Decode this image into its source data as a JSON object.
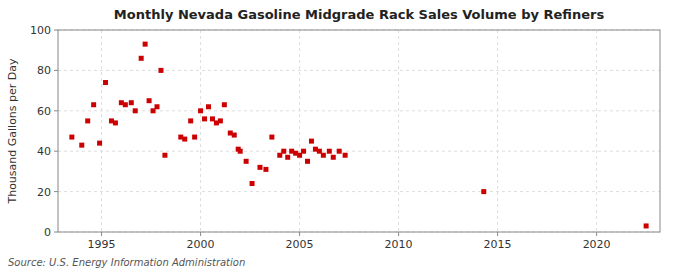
{
  "chart_data": {
    "type": "scatter",
    "title": "Monthly Nevada Gasoline Midgrade Rack Sales Volume by Refiners",
    "ylabel": "Thousand Gallons per Day",
    "annotations": [
      "Source: U.S. Energy Information Administration"
    ],
    "color": "#cc0000",
    "marker": "square",
    "grid": true,
    "xlim": [
      1992.8,
      2023.2
    ],
    "ylim": [
      0,
      100
    ],
    "xticks": [
      1995,
      2000,
      2005,
      2010,
      2015,
      2020
    ],
    "yticks": [
      0,
      20,
      40,
      60,
      80,
      100
    ],
    "x": [
      1993.5,
      1994.0,
      1994.3,
      1994.6,
      1994.9,
      1995.2,
      1995.5,
      1995.7,
      1996.0,
      1996.2,
      1996.5,
      1996.7,
      1997.0,
      1997.2,
      1997.4,
      1997.6,
      1997.8,
      1998.0,
      1998.2,
      1999.0,
      1999.2,
      1999.5,
      1999.7,
      2000.0,
      2000.2,
      2000.4,
      2000.6,
      2000.8,
      2001.0,
      2001.2,
      2001.5,
      2001.7,
      2001.9,
      2002.0,
      2002.3,
      2002.6,
      2003.0,
      2003.3,
      2003.6,
      2004.0,
      2004.2,
      2004.4,
      2004.6,
      2004.8,
      2005.0,
      2005.2,
      2005.4,
      2005.6,
      2005.8,
      2006.0,
      2006.2,
      2006.5,
      2006.7,
      2007.0,
      2007.3,
      2014.3,
      2022.5
    ],
    "values": [
      47,
      43,
      55,
      63,
      44,
      74,
      55,
      54,
      64,
      63,
      64,
      60,
      86,
      93,
      65,
      60,
      62,
      80,
      38,
      47,
      46,
      55,
      47,
      60,
      56,
      62,
      56,
      54,
      55,
      63,
      49,
      48,
      41,
      40,
      35,
      24,
      32,
      31,
      47,
      38,
      40,
      37,
      40,
      39,
      38,
      40,
      35,
      45,
      41,
      40,
      38,
      40,
      37,
      40,
      38,
      20,
      3
    ]
  }
}
